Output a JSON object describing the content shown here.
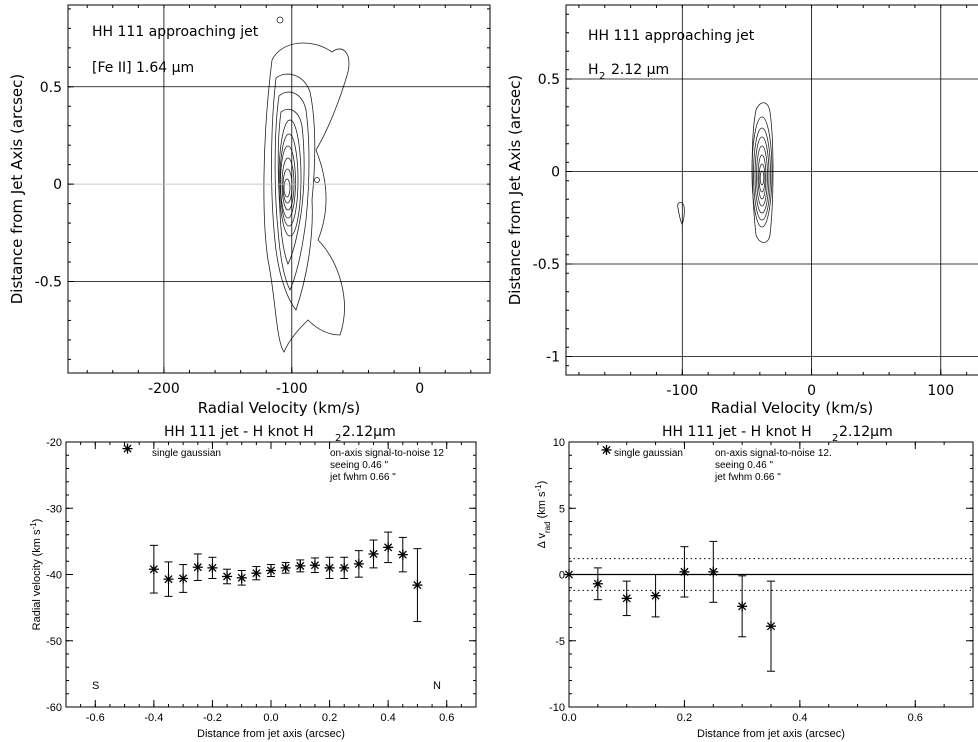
{
  "chart_data": [
    {
      "type": "contour",
      "annotations": [
        "HH 111   approaching jet",
        "[Fe II] 1.64 µm"
      ],
      "xlabel": "Radial Velocity (km/s)",
      "ylabel": "Distance from Jet Axis (arcsec)",
      "xlim": [
        -275,
        55
      ],
      "ylim": [
        -0.97,
        0.92
      ],
      "x_ticks": [
        -200,
        -100,
        0
      ],
      "x_tick_labels": [
        "-200",
        "-100",
        "0"
      ],
      "y_ticks": [
        0.5,
        0,
        -0.5
      ],
      "y_tick_labels": [
        "0.5",
        "0",
        "-0.5"
      ],
      "grid_x": [
        -200,
        -100
      ],
      "grid_y": [
        0.5,
        -0.5
      ],
      "zero_line_y": 0,
      "peak": {
        "x": -105,
        "y": -0.02
      }
    },
    {
      "type": "contour",
      "annotations": [
        "HH 111  approaching jet",
        "H",
        "2",
        "2.12 µm"
      ],
      "xlabel": "Radial Velocity (km/s)",
      "ylabel": "Distance from Jet Axis (arcsec)",
      "xlim": [
        -190,
        135
      ],
      "ylim": [
        -1.1,
        0.9
      ],
      "x_ticks": [
        -100,
        0,
        100
      ],
      "x_tick_labels": [
        "-100",
        "0",
        "100"
      ],
      "y_ticks": [
        0.5,
        0,
        -0.5,
        -1
      ],
      "y_tick_labels": [
        "0.5",
        "0",
        "-0.5",
        "-1"
      ],
      "grid_x": [
        -100,
        0,
        100
      ],
      "grid_y": [
        0.5,
        -0.5,
        -1
      ],
      "zero_line_y": 0,
      "peak": {
        "x": -37,
        "y": -0.03
      }
    },
    {
      "type": "scatter",
      "title": "HH 111 jet - H knot  H",
      "title_sub": "2",
      "title_end": " 2.12µm",
      "xlabel": "Distance from jet axis (arcsec)",
      "ylabel": "Radial velocity (km s",
      "ylabel_sup": "-1",
      "ylabel_end": ")",
      "xlim": [
        -0.7,
        0.7
      ],
      "ylim": [
        -60,
        -20
      ],
      "x_ticks": [
        -0.6,
        -0.4,
        -0.2,
        0.0,
        0.2,
        0.4,
        0.6
      ],
      "x_tick_labels": [
        "-0.6",
        "-0.4",
        "-0.2",
        "0.0",
        "0.2",
        "0.4",
        "0.6"
      ],
      "y_ticks": [
        -60,
        -50,
        -40,
        -30,
        -20
      ],
      "y_tick_labels": [
        "-60",
        "-50",
        "-40",
        "-30",
        "-20"
      ],
      "legend": "single gaussian",
      "legend_marker_point": {
        "x": -0.49,
        "y": -21.0
      },
      "info": [
        "on-axis signal-to-noise  12",
        "seeing  0.46 \"",
        "jet fwhm  0.66 \""
      ],
      "corner_left": "S",
      "corner_right": "N",
      "series": [
        {
          "x": [
            -0.4,
            -0.35,
            -0.3,
            -0.25,
            -0.2,
            -0.15,
            -0.1,
            -0.05,
            0.0,
            0.05,
            0.1,
            0.15,
            0.2,
            0.25,
            0.3,
            0.35,
            0.4,
            0.45,
            0.5
          ],
          "y": [
            -39.2,
            -40.7,
            -40.6,
            -38.9,
            -39.0,
            -40.3,
            -40.5,
            -39.8,
            -39.4,
            -39.0,
            -38.7,
            -38.6,
            -39.0,
            -39.0,
            -38.4,
            -36.9,
            -35.9,
            -37.0,
            -41.6
          ],
          "err": [
            3.6,
            2.6,
            2.1,
            2.0,
            1.6,
            1.1,
            1.1,
            1.0,
            0.9,
            0.8,
            0.9,
            1.1,
            1.6,
            1.6,
            2.0,
            2.1,
            2.3,
            2.6,
            5.5
          ]
        }
      ]
    },
    {
      "type": "scatter",
      "title": "HH 111 jet - H knot  H",
      "title_sub": "2",
      "title_end": " 2.12µm",
      "xlabel": "Distance from jet axis (arcsec)",
      "ylabel": "Δ v",
      "ylabel_sub": "rad",
      "ylabel_mid": " (km s",
      "ylabel_sup": "-1",
      "ylabel_end": ")",
      "xlim": [
        0.0,
        0.7
      ],
      "ylim": [
        -10,
        10
      ],
      "x_ticks": [
        0.0,
        0.2,
        0.4,
        0.6
      ],
      "x_tick_labels": [
        "0.0",
        "0.2",
        "0.4",
        "0.6"
      ],
      "y_ticks": [
        -10,
        -5,
        0,
        5,
        10
      ],
      "y_tick_labels": [
        "-10",
        "-5",
        "0",
        "5",
        "10"
      ],
      "legend": "single gaussian",
      "legend_marker_point": {
        "x": 0.065,
        "y": 9.4
      },
      "info": [
        "on-axis signal-to-noise  12.",
        "seeing  0.46 \"",
        "jet fwhm  0.66 \""
      ],
      "hlines": [
        {
          "y": 0,
          "style": "solid"
        },
        {
          "y": 1.2,
          "style": "dotted"
        },
        {
          "y": -1.2,
          "style": "dotted"
        }
      ],
      "series": [
        {
          "x": [
            0.0,
            0.05,
            0.1,
            0.15,
            0.2,
            0.25,
            0.3,
            0.35
          ],
          "y": [
            0.0,
            -0.7,
            -1.8,
            -1.6,
            0.2,
            0.2,
            -2.4,
            -3.9
          ],
          "err": [
            0.0,
            1.2,
            1.3,
            1.6,
            1.9,
            2.3,
            2.3,
            3.4
          ]
        }
      ]
    }
  ]
}
